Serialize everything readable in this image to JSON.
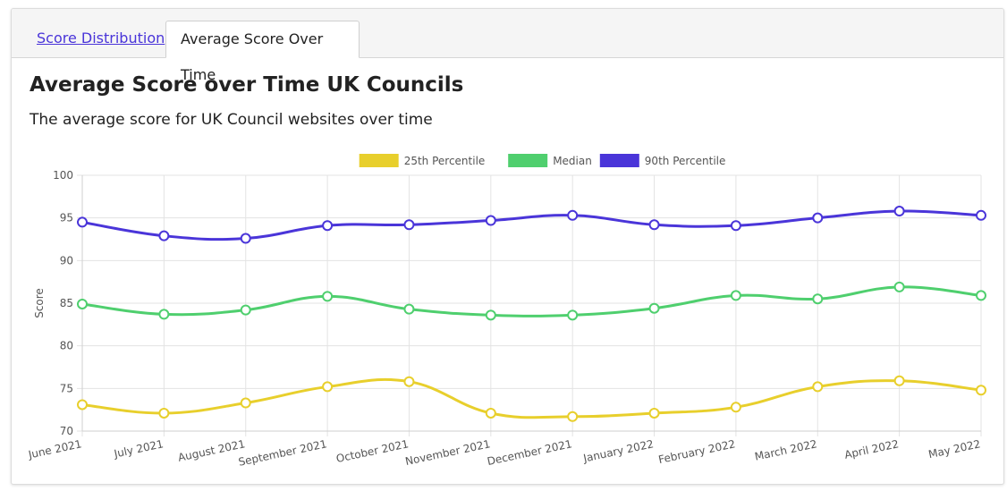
{
  "tabs": [
    {
      "label": "Score Distribution",
      "active": false
    },
    {
      "label": "Average Score Over Time",
      "active": true
    }
  ],
  "title": "Average Score over Time UK Councils",
  "subtitle": "The average score for UK Council websites over time",
  "colors": {
    "p25": "#e8cf2c",
    "median": "#4fcf6e",
    "p90": "#4a35d9",
    "link": "#4a35d9"
  },
  "chart_data": {
    "type": "line",
    "ylabel": "Score",
    "xlabel": "",
    "ylim": [
      70,
      100
    ],
    "yticks": [
      70,
      75,
      80,
      85,
      90,
      95,
      100
    ],
    "grid": true,
    "legend_position": "top-center",
    "categories": [
      "June 2021",
      "July 2021",
      "August 2021",
      "September 2021",
      "October 2021",
      "November 2021",
      "December 2021",
      "January 2022",
      "February 2022",
      "March 2022",
      "April 2022",
      "May 2022"
    ],
    "series": [
      {
        "name": "25th Percentile",
        "color": "#e8cf2c",
        "values": [
          73.1,
          72.1,
          73.3,
          75.2,
          75.8,
          72.1,
          71.7,
          72.1,
          72.8,
          75.2,
          75.9,
          74.8
        ]
      },
      {
        "name": "Median",
        "color": "#4fcf6e",
        "values": [
          84.9,
          83.7,
          84.2,
          85.8,
          84.3,
          83.6,
          83.6,
          84.4,
          85.9,
          85.5,
          86.9,
          85.9
        ]
      },
      {
        "name": "90th Percentile",
        "color": "#4a35d9",
        "values": [
          94.5,
          92.9,
          92.6,
          94.1,
          94.2,
          94.7,
          95.3,
          94.2,
          94.1,
          95.0,
          95.8,
          95.3
        ]
      }
    ]
  }
}
